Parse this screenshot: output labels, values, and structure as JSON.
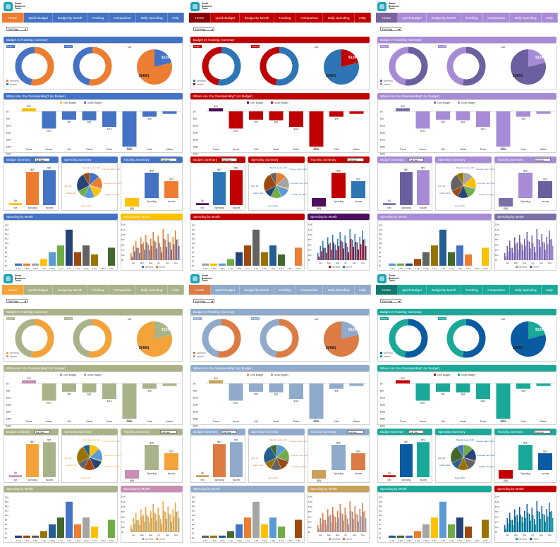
{
  "nav_tabs": [
    "Home",
    "Quick Budget",
    "Budget by Month",
    "Tracking",
    "Comparison",
    "Daily Spending",
    "Help"
  ],
  "logo_text": [
    "Smart",
    "Business",
    "Tools"
  ],
  "period_filter": "Full Year",
  "sections": {
    "summary_title": "Budget vs Tracking: Summary",
    "overspending_title": "Where Are You Overspending? (vs Budget)",
    "budget_summary_title": "Budget Summary",
    "spending_summary_title": "Spending Summary",
    "tracking_summary_title": "Tracking Summary",
    "spending_by_month_title": "Spending by Month",
    "chart_label": "Chart",
    "month_selector": "February"
  },
  "donut_labels": {
    "budget": "Budget",
    "tracking": "Tracking",
    "net": "Net"
  },
  "donut_legend": [
    "Spending",
    "Income"
  ],
  "net_pie": {
    "positive": "$128",
    "negative": "$(480)"
  },
  "overspending_legend": [
    "Over Budget",
    "Under Budget"
  ],
  "overspending_chart": {
    "categories": [
      "Trans",
      "Home",
      "Util",
      "Healt",
      "Enter",
      "Obsn",
      "Kids",
      "Misce"
    ],
    "values": [
      23,
      -122,
      -59,
      -63,
      -110,
      -250,
      -38,
      -18
    ],
    "value_labels": [
      "$23",
      "$122",
      "$59",
      "$63",
      "$110",
      "$250",
      "$38",
      ""
    ],
    "y_ticks": [
      "$0",
      "$50",
      "$100",
      "$150",
      "$200",
      "$250",
      "$300"
    ]
  },
  "budget_summary_chart": {
    "categories": [
      "Net",
      "Spending",
      "Income"
    ],
    "value_labels": [
      "$4",
      "$67",
      "$71"
    ],
    "values": [
      4,
      67,
      71
    ]
  },
  "spending_summary_labels": [
    "Miscella neous, $18",
    "Transpo rtation, $23",
    "Kids, $2",
    "Utilities, $19",
    "Entertain ment, $20",
    "Healthc are, $14",
    "Home, $33"
  ],
  "tracking_summary_chart": {
    "categories": [
      "Net",
      "Spending",
      "Income"
    ],
    "value_labels": [
      "$(5)",
      "$15",
      "$10"
    ],
    "values": [
      -5,
      15,
      10
    ]
  },
  "spending_by_month_chart": {
    "categories": [
      "1-Jan",
      "1-Feb",
      "1-Mar",
      "1-Apr",
      "1-May",
      "1-Jun",
      "1-Jul",
      "1-Aug",
      "1-Sep",
      "1-Oct",
      "1-Nov",
      "1-Dec"
    ],
    "values": [
      1,
      1,
      1,
      3,
      6,
      9,
      16,
      6,
      9,
      5,
      0,
      8
    ],
    "y_ticks": [
      "$0",
      "$2",
      "$4",
      "$6",
      "$8",
      "$10",
      "$12",
      "$14",
      "$16",
      "$18"
    ]
  },
  "daily_chart": {
    "categories": [
      "Jan",
      "Mar",
      "May",
      "Jul",
      "Sep",
      "Nov"
    ],
    "legend": [
      "Spending",
      "Income"
    ],
    "y_ticks": [
      "$0",
      "$20",
      "$40",
      "$60",
      "$80",
      "$100",
      "$120",
      "$140"
    ],
    "spending": [
      10,
      25,
      35,
      20,
      45,
      30,
      50,
      28,
      40,
      55,
      33,
      48,
      22,
      60,
      38,
      52,
      30,
      45,
      58,
      40
    ],
    "income": [
      20,
      40,
      55,
      35,
      65,
      50,
      72,
      44,
      60,
      80,
      52,
      70,
      38,
      88,
      58,
      74,
      50,
      66,
      84,
      60
    ]
  },
  "themes": [
    {
      "name": "blue",
      "primary": "#4472c4",
      "secondary": "#ed7d31",
      "header": "#4472c4",
      "accent2": "#ffc000",
      "nav": "#4472c4"
    },
    {
      "name": "red",
      "primary": "#c00000",
      "secondary": "#2e75b6",
      "header": "#c00000",
      "accent2": "#4b0f5c",
      "nav": "#c00000"
    },
    {
      "name": "purple",
      "primary": "#a78bd6",
      "secondary": "#6b5fa0",
      "header": "#a78bd6",
      "accent2": "#7c6fa8",
      "nav": "#a78bd6"
    },
    {
      "name": "olive",
      "primary": "#a9b38a",
      "secondary": "#f4a23a",
      "header": "#a9b38a",
      "accent2": "#c98db5",
      "nav": "#a9b38a"
    },
    {
      "name": "slate",
      "primary": "#8faacb",
      "secondary": "#dd7b44",
      "header": "#8faacb",
      "accent2": "#c9a05a",
      "nav": "#8faacb"
    },
    {
      "name": "teal",
      "primary": "#1aa898",
      "secondary": "#0b5ba3",
      "header": "#1aa898",
      "accent2": "#c00000",
      "nav": "#1aa898"
    }
  ],
  "multi_palette": [
    "#4472c4",
    "#ed7d31",
    "#a5a5a5",
    "#ffc000",
    "#5b9bd5",
    "#70ad47",
    "#264478",
    "#9e480e",
    "#636363",
    "#997300",
    "#255e91",
    "#43682b"
  ]
}
